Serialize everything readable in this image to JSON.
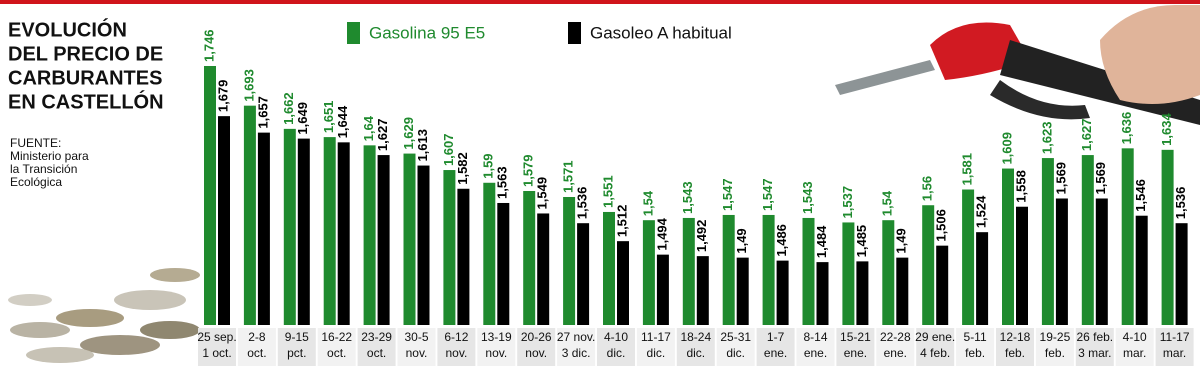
{
  "chart_data": {
    "type": "bar",
    "title": [
      "EVOLUCIÓN",
      "DEL PRECIO DE",
      "CARBURANTES",
      "EN CASTELLÓN"
    ],
    "source": [
      "FUENTE:",
      "Ministerio para",
      "la Transición",
      "Ecológica"
    ],
    "categories": [
      [
        "25 sep.",
        "1 oct."
      ],
      [
        "2-8",
        "oct."
      ],
      [
        "9-15",
        "pct."
      ],
      [
        "16-22",
        "oct."
      ],
      [
        "23-29",
        "oct."
      ],
      [
        "30-5",
        "nov."
      ],
      [
        "6-12",
        "nov."
      ],
      [
        "13-19",
        "nov."
      ],
      [
        "20-26",
        "nov."
      ],
      [
        "27 nov.",
        "3 dic."
      ],
      [
        "4-10",
        "dic."
      ],
      [
        "11-17",
        "dic."
      ],
      [
        "18-24",
        "dic."
      ],
      [
        "25-31",
        "dic."
      ],
      [
        "1-7",
        "ene."
      ],
      [
        "8-14",
        "ene."
      ],
      [
        "15-21",
        "ene."
      ],
      [
        "22-28",
        "ene."
      ],
      [
        "29 ene.",
        "4 feb."
      ],
      [
        "5-11",
        "feb."
      ],
      [
        "12-18",
        "feb."
      ],
      [
        "19-25",
        "feb."
      ],
      [
        "26 feb.",
        "3 mar."
      ],
      [
        "4-10",
        "mar."
      ],
      [
        "11-17",
        "mar."
      ]
    ],
    "series": [
      {
        "name": "Gasolina 95 E5",
        "color": "#1f8a2e",
        "values": [
          1.746,
          1.693,
          1.662,
          1.651,
          1.64,
          1.629,
          1.607,
          1.59,
          1.579,
          1.571,
          1.551,
          1.54,
          1.543,
          1.547,
          1.547,
          1.543,
          1.537,
          1.54,
          1.56,
          1.581,
          1.609,
          1.623,
          1.627,
          1.636,
          1.634
        ],
        "value_labels": [
          "1,746",
          "1,693",
          "1,662",
          "1,651",
          "1,64",
          "1,629",
          "1,607",
          "1,59",
          "1,579",
          "1,571",
          "1,551",
          "1,54",
          "1,543",
          "1,547",
          "1,547",
          "1,543",
          "1,537",
          "1,54",
          "1,56",
          "1,581",
          "1,609",
          "1,623",
          "1,627",
          "1,636",
          "1,634"
        ]
      },
      {
        "name": "Gasoleo A habitual",
        "color": "#000000",
        "values": [
          1.679,
          1.657,
          1.649,
          1.644,
          1.627,
          1.613,
          1.582,
          1.563,
          1.549,
          1.536,
          1.512,
          1.494,
          1.492,
          1.49,
          1.486,
          1.484,
          1.485,
          1.49,
          1.506,
          1.524,
          1.558,
          1.569,
          1.569,
          1.546,
          1.536
        ],
        "value_labels": [
          "1,679",
          "1,657",
          "1,649",
          "1,644",
          "1,627",
          "1,613",
          "1,582",
          "1,563",
          "1,549",
          "1,536",
          "1,512",
          "1,494",
          "1,492",
          "1,49",
          "1,486",
          "1,484",
          "1,485",
          "1,49",
          "1,506",
          "1,524",
          "1,558",
          "1,569",
          "1,569",
          "1,546",
          "1,536"
        ]
      }
    ],
    "ylim": [
      1.4,
      1.75
    ]
  }
}
